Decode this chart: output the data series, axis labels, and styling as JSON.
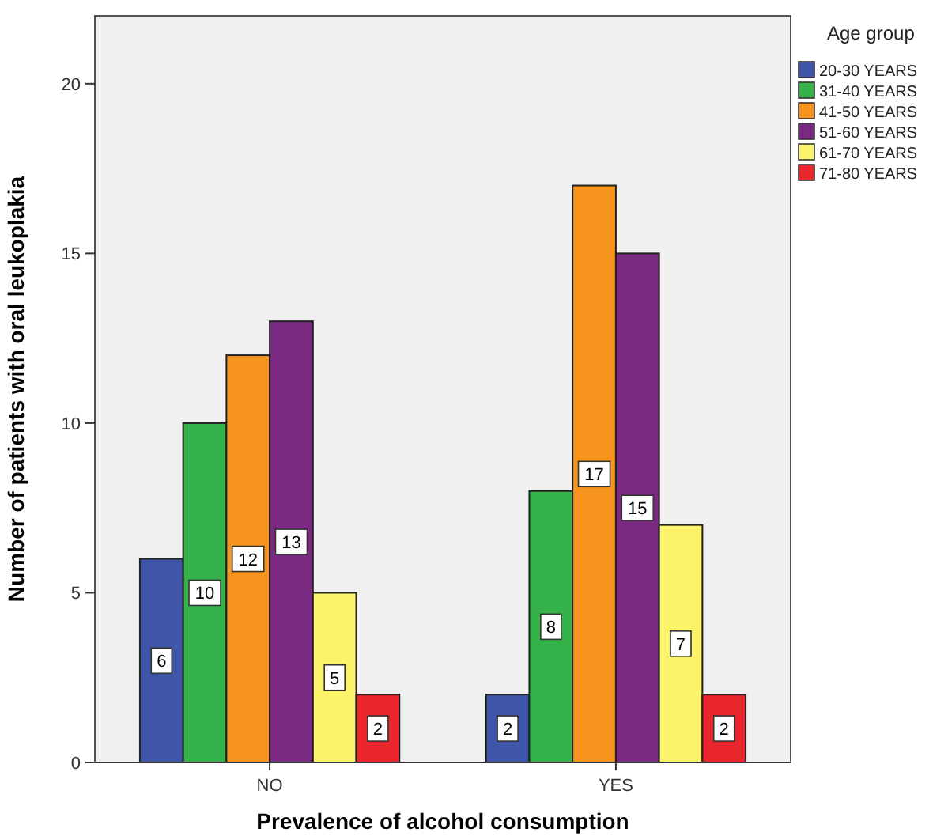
{
  "chart_data": {
    "type": "bar",
    "xlabel": "Prevalence of alcohol consumption",
    "ylabel": "Number of patients with oral leukoplakia",
    "legend_title": "Age group",
    "categories": [
      "NO",
      "YES"
    ],
    "series": [
      {
        "name": "20-30 YEARS",
        "color": "#3f56a8",
        "values": [
          6,
          2
        ]
      },
      {
        "name": "31-40 YEARS",
        "color": "#35b34a",
        "values": [
          10,
          8
        ]
      },
      {
        "name": "41-50 YEARS",
        "color": "#f7941d",
        "values": [
          12,
          17
        ]
      },
      {
        "name": "51-60 YEARS",
        "color": "#7b2a83",
        "values": [
          13,
          15
        ]
      },
      {
        "name": "61-70 YEARS",
        "color": "#fbf46b",
        "values": [
          5,
          7
        ]
      },
      {
        "name": "71-80 YEARS",
        "color": "#e8262b",
        "values": [
          2,
          2
        ]
      }
    ],
    "ylim": [
      0,
      22
    ],
    "yticks": [
      0,
      5,
      10,
      15,
      20
    ],
    "data_labels": true,
    "legend": "right",
    "grid": false
  }
}
